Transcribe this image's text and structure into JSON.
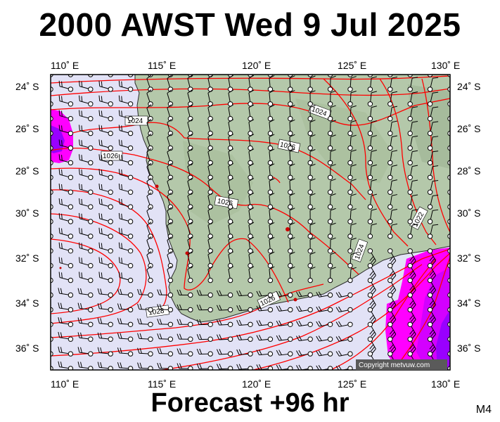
{
  "header": {
    "title": "2000 AWST Wed 9 Jul 2025"
  },
  "footer": {
    "forecast": "Forecast +96 hr",
    "model_code": "M4"
  },
  "map": {
    "lon_labels": [
      "110˚ E",
      "115˚ E",
      "120˚ E",
      "125˚ E",
      "130˚ E"
    ],
    "lat_labels": [
      "24˚ S",
      "26˚ S",
      "28˚ S",
      "30˚ S",
      "32˚ S",
      "34˚ S",
      "36˚ S"
    ],
    "isobar_labels": [
      "1024",
      "1024",
      "1026",
      "1026",
      "1026",
      "1026",
      "1028",
      "1024",
      "1022"
    ],
    "copyright": "Copyright metvuw.com",
    "colors": {
      "ocean": "#e2e2f6",
      "land": "#b4c8aa",
      "isobar": "#ff0000",
      "rain_light": "#ff00ff",
      "rain_heavy": "#9900ff"
    }
  }
}
